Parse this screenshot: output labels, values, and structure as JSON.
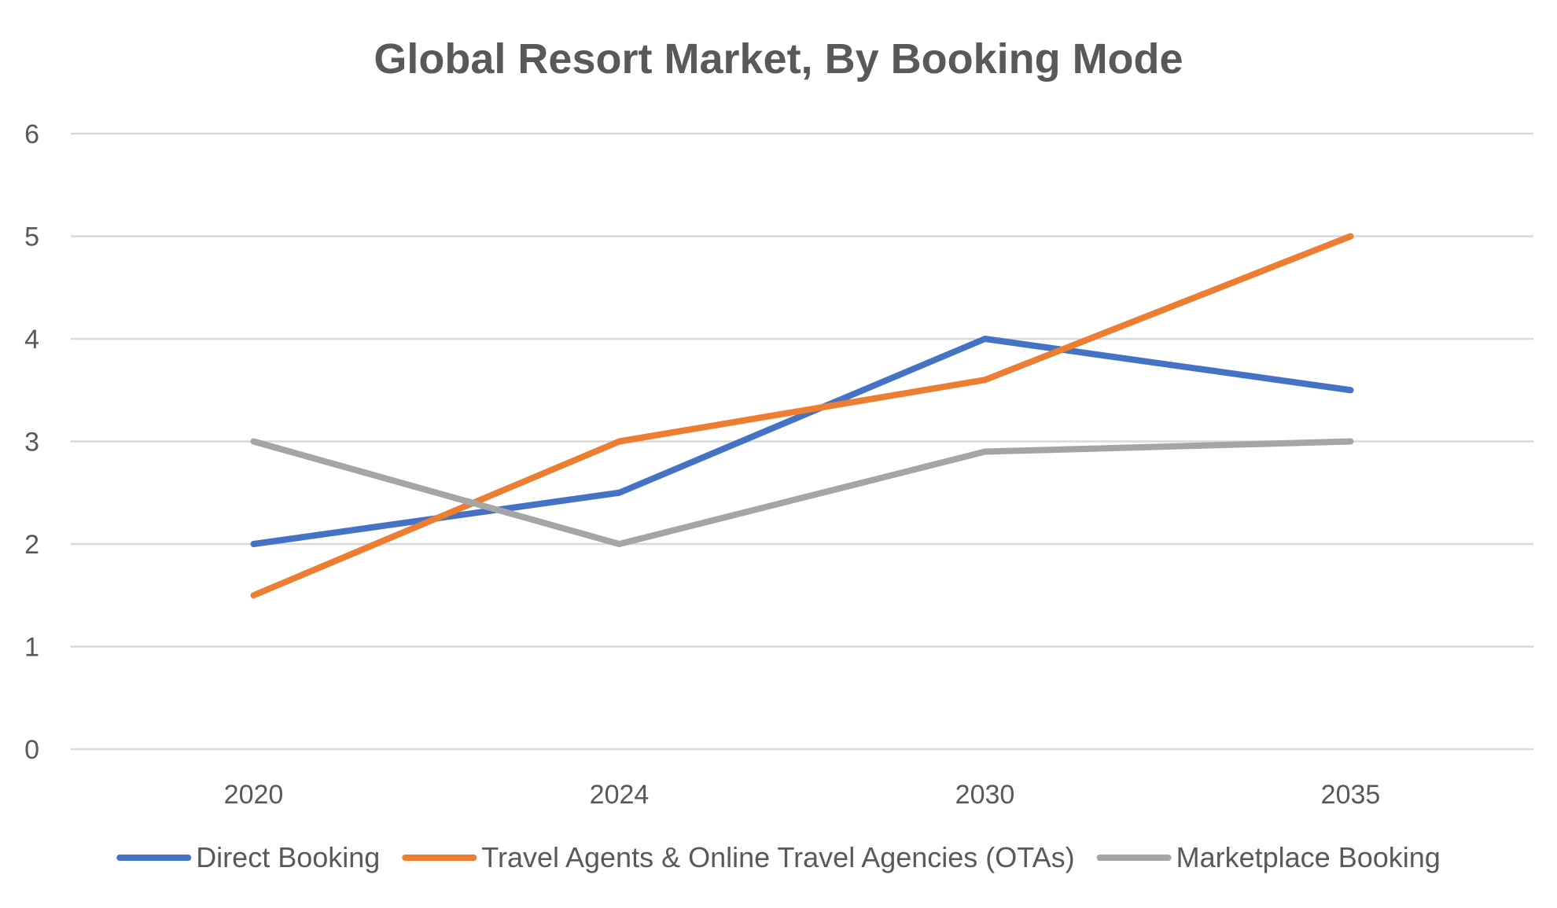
{
  "chart_data": {
    "type": "line",
    "title": "Global Resort Market, By Booking Mode",
    "xlabel": "",
    "ylabel": "",
    "categories": [
      "2020",
      "2024",
      "2030",
      "2035"
    ],
    "ylim": [
      0,
      6
    ],
    "yticks": [
      "0",
      "1",
      "2",
      "3",
      "4",
      "5",
      "6"
    ],
    "grid": true,
    "legend_position": "bottom",
    "series": [
      {
        "name": "Direct Booking",
        "color": "#4472C4",
        "values": [
          2,
          2.5,
          4,
          3.5
        ]
      },
      {
        "name": "Travel Agents & Online Travel Agencies (OTAs)",
        "color": "#ED7D31",
        "values": [
          1.5,
          3,
          3.6,
          5
        ]
      },
      {
        "name": "Marketplace Booking",
        "color": "#A5A5A5",
        "values": [
          3,
          2,
          2.9,
          3
        ]
      }
    ]
  }
}
